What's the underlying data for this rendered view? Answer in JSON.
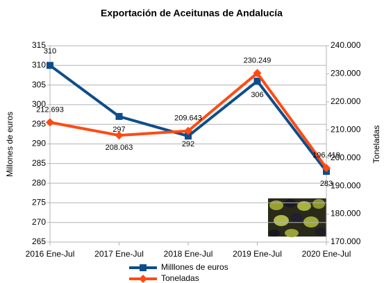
{
  "chart_data": {
    "type": "line",
    "title": "Exportación de Aceitunas de Andalucía",
    "y_label": "Millones de euros",
    "y2_label": "Toneladas",
    "categories": [
      "2016 Ene-Jul",
      "2017 Ene-Jul",
      "2018 Ene-Jul",
      "2019 Ene-Jul",
      "2020 Ene-Jul"
    ],
    "series": [
      {
        "name": "Milllones de euros",
        "color": "#0e4d8c",
        "values": [
          310,
          297,
          292,
          306,
          283
        ]
      },
      {
        "name": "Toneladas",
        "color": "#ff4a12",
        "axis": "y2",
        "values": [
          212693,
          208063,
          209643,
          230249,
          196419
        ],
        "value_labels": [
          "212.693",
          "208.063",
          "209.643",
          "230.249",
          "196.419"
        ]
      }
    ],
    "ylim": [
      265,
      315
    ],
    "yticks": [
      265,
      270,
      275,
      280,
      285,
      290,
      295,
      300,
      305,
      310,
      315
    ],
    "y2lim": [
      170000,
      240000
    ],
    "y2ticks": [
      {
        "value": 170000,
        "label": "170.000"
      },
      {
        "value": 180000,
        "label": "180.000"
      },
      {
        "value": 190000,
        "label": "190.000"
      },
      {
        "value": 200000,
        "label": "200.000"
      },
      {
        "value": 210000,
        "label": "210.000"
      },
      {
        "value": 220000,
        "label": "220.000"
      },
      {
        "value": 230000,
        "label": "230.000"
      },
      {
        "value": 240000,
        "label": "240.000"
      }
    ],
    "grid": true,
    "legend": "bottom"
  }
}
